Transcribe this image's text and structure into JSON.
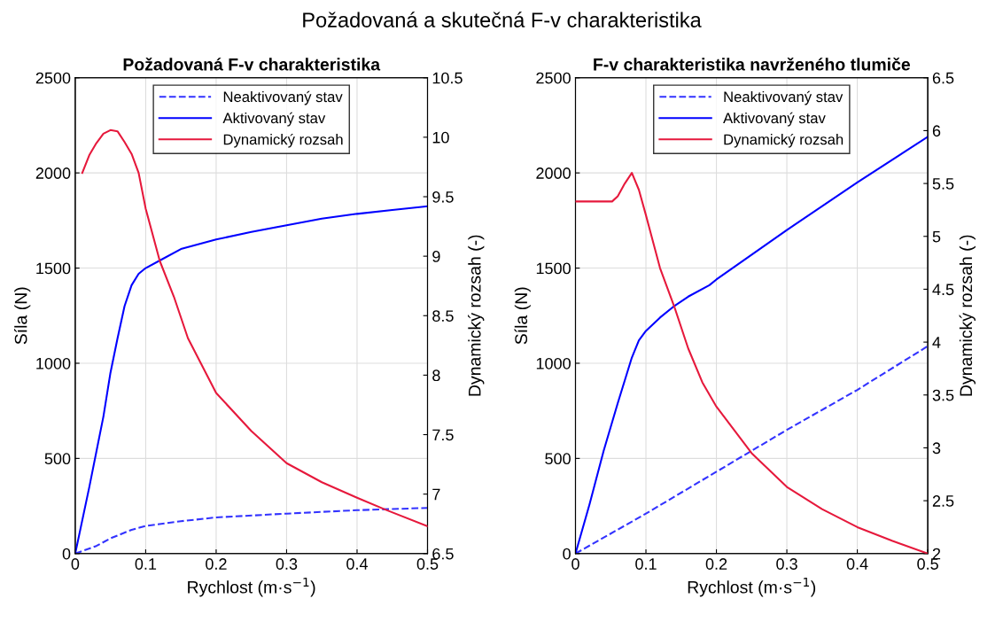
{
  "chart_data": [
    {
      "type": "line",
      "title": "Požadovaná F-v charakteristika",
      "xlabel": "Rychlost (m·s$^{−1}$)",
      "ylabel": "Síla (N)",
      "y2label": "Dynamický rozsah (-)",
      "xlim": [
        0,
        0.5
      ],
      "xticks": [
        0,
        0.1,
        0.2,
        0.3,
        0.4,
        0.5
      ],
      "ylim": [
        0,
        2500
      ],
      "yticks": [
        0,
        500,
        1000,
        1500,
        2000,
        2500
      ],
      "y2lim": [
        6.5,
        10.5
      ],
      "y2ticks": [
        6.5,
        7,
        7.5,
        8,
        8.5,
        9,
        9.5,
        10,
        10.5
      ],
      "grid": true,
      "legend": "top",
      "annotations": [
        "Požadovaná a skutečná F-v charakteristika"
      ],
      "series": [
        {
          "name": "Neaktivovaný stav",
          "color": "#3333ff",
          "line_style": "dashed",
          "x": [
            0,
            0.03,
            0.05,
            0.08,
            0.1,
            0.15,
            0.2,
            0.3,
            0.4,
            0.5
          ],
          "values": [
            0,
            40,
            80,
            125,
            145,
            170,
            190,
            210,
            228,
            240
          ]
        },
        {
          "name": "Aktivovaný stav",
          "color": "#0000ff",
          "line_style": "solid",
          "x": [
            0,
            0.02,
            0.04,
            0.05,
            0.06,
            0.07,
            0.08,
            0.09,
            0.1,
            0.12,
            0.15,
            0.2,
            0.25,
            0.3,
            0.35,
            0.4,
            0.45,
            0.5
          ],
          "values": [
            0,
            350,
            720,
            950,
            1130,
            1300,
            1410,
            1470,
            1500,
            1540,
            1600,
            1650,
            1690,
            1725,
            1760,
            1785,
            1805,
            1825
          ]
        },
        {
          "name": "Dynamický rozsah",
          "color": "#e6193c",
          "line_style": "solid",
          "axis": "y2",
          "x": [
            0.01,
            0.02,
            0.03,
            0.04,
            0.05,
            0.06,
            0.07,
            0.08,
            0.09,
            0.1,
            0.12,
            0.14,
            0.16,
            0.2,
            0.25,
            0.3,
            0.35,
            0.4,
            0.44,
            0.5
          ],
          "values": [
            9.7,
            9.85,
            9.95,
            10.03,
            10.06,
            10.05,
            9.96,
            9.86,
            9.7,
            9.4,
            8.96,
            8.66,
            8.31,
            7.85,
            7.53,
            7.26,
            7.1,
            6.97,
            6.87,
            6.73
          ]
        }
      ]
    },
    {
      "type": "line",
      "title": "F-v charakteristika navrženého tlumiče",
      "xlabel": "Rychlost (m·s$^{−1}$)",
      "ylabel": "Síla (N)",
      "y2label": "Dynamický rozsah (-)",
      "xlim": [
        0,
        0.5
      ],
      "xticks": [
        0,
        0.1,
        0.2,
        0.3,
        0.4,
        0.5
      ],
      "ylim": [
        0,
        2500
      ],
      "yticks": [
        0,
        500,
        1000,
        1500,
        2000,
        2500
      ],
      "y2lim": [
        2,
        6.5
      ],
      "y2ticks": [
        2,
        2.5,
        3,
        3.5,
        4,
        4.5,
        5,
        5.5,
        6,
        6.5
      ],
      "grid": true,
      "legend": "top",
      "series": [
        {
          "name": "Neaktivovaný stav",
          "color": "#3333ff",
          "line_style": "dashed",
          "x": [
            0,
            0.1,
            0.2,
            0.3,
            0.4,
            0.5
          ],
          "values": [
            0,
            210,
            430,
            650,
            860,
            1090
          ]
        },
        {
          "name": "Aktivovaný stav",
          "color": "#0000ff",
          "line_style": "solid",
          "x": [
            0,
            0.02,
            0.04,
            0.06,
            0.08,
            0.09,
            0.1,
            0.12,
            0.14,
            0.16,
            0.19,
            0.2,
            0.3,
            0.4,
            0.5
          ],
          "values": [
            0,
            260,
            540,
            790,
            1030,
            1120,
            1170,
            1240,
            1300,
            1350,
            1410,
            1440,
            1700,
            1950,
            2190
          ]
        },
        {
          "name": "Dynamický rozsah",
          "color": "#e6193c",
          "line_style": "solid",
          "axis": "y2",
          "x": [
            0,
            0.052,
            0.06,
            0.07,
            0.08,
            0.09,
            0.1,
            0.12,
            0.14,
            0.16,
            0.18,
            0.2,
            0.25,
            0.3,
            0.35,
            0.4,
            0.45,
            0.5
          ],
          "values": [
            5.33,
            5.33,
            5.38,
            5.5,
            5.6,
            5.44,
            5.2,
            4.7,
            4.34,
            3.94,
            3.62,
            3.39,
            2.95,
            2.63,
            2.42,
            2.25,
            2.12,
            2.0
          ]
        }
      ]
    }
  ]
}
